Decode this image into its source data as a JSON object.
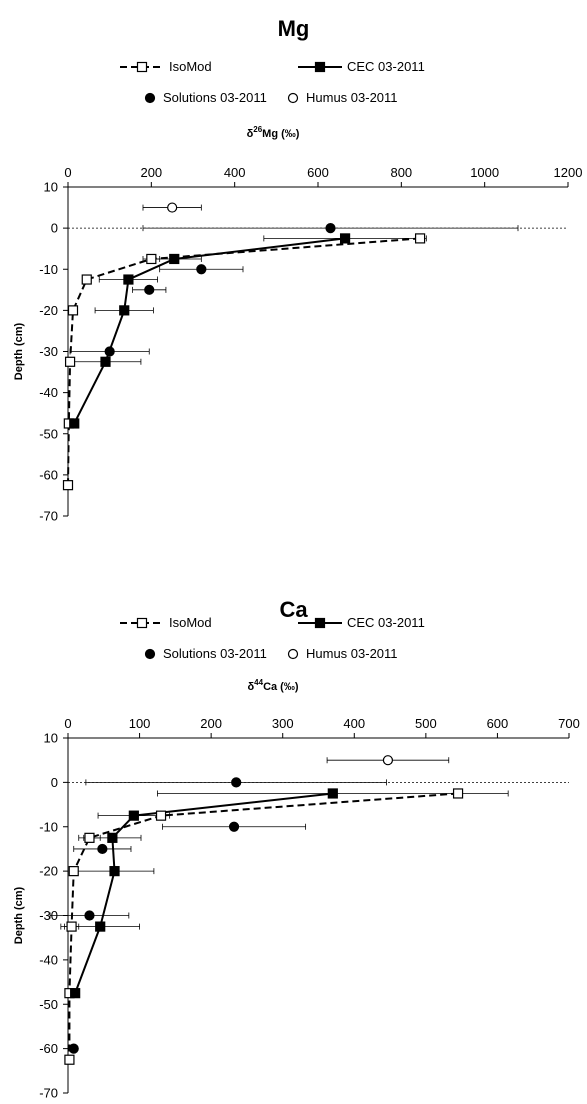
{
  "chart_data": [
    {
      "type": "line",
      "title": "Mg",
      "xlabel_prefix": "δ",
      "xlabel_sup": "26",
      "xlabel_suffix": "Mg (‰)",
      "ylabel": "Depth (cm)",
      "xlim": [
        0,
        1200
      ],
      "ylim": [
        -70,
        10
      ],
      "xticks": [
        0,
        200,
        400,
        600,
        800,
        1000,
        1200
      ],
      "yticks": [
        10,
        0,
        -10,
        -20,
        -30,
        -40,
        -50,
        -60,
        -70
      ],
      "grid": false,
      "legend_position": "top",
      "series": [
        {
          "name": "IsoMod",
          "style": "dashed-open-square",
          "points": [
            {
              "x": 845,
              "y": -2.5
            },
            {
              "x": 200,
              "y": -7.5
            },
            {
              "x": 45,
              "y": -12.5
            },
            {
              "x": 12,
              "y": -20
            },
            {
              "x": 5,
              "y": -32.5
            },
            {
              "x": 2,
              "y": -47.5
            },
            {
              "x": 0,
              "y": -62.5
            }
          ]
        },
        {
          "name": "CEC 03-2011",
          "style": "solid-filled-square",
          "points": [
            {
              "x": 665,
              "y": -2.5
            },
            {
              "x": 255,
              "y": -7.5
            },
            {
              "x": 145,
              "y": -12.5
            },
            {
              "x": 135,
              "y": -20
            },
            {
              "x": 90,
              "y": -32.5
            },
            {
              "x": 15,
              "y": -47.5
            }
          ]
        },
        {
          "name": "Solutions 03-2011",
          "style": "filled-circle",
          "points": [
            {
              "x": 630,
              "y": 0,
              "xerr": 450
            },
            {
              "x": 320,
              "y": -10,
              "xerr": 100
            },
            {
              "x": 195,
              "y": -15,
              "xerr": 40
            },
            {
              "x": 100,
              "y": -30,
              "xerr": 95
            }
          ]
        },
        {
          "name": "Humus 03-2011",
          "style": "open-circle",
          "points": [
            {
              "x": 250,
              "y": 5,
              "xerr": 70
            }
          ]
        }
      ],
      "error_bars": {
        "IsoMod": [
          {
            "x": 845,
            "y": -2.5,
            "err": 0
          },
          {
            "x": 200,
            "y": -7.5,
            "err": 20
          },
          {
            "x": 45,
            "y": -12.5,
            "err": 0
          },
          {
            "x": 12,
            "y": -20,
            "err": 0
          },
          {
            "x": 5,
            "y": -32.5,
            "err": 0
          },
          {
            "x": 2,
            "y": -47.5,
            "err": 0
          },
          {
            "x": 0,
            "y": -62.5,
            "err": 0
          }
        ],
        "CEC 03-2011": [
          {
            "x": 665,
            "y": -2.5,
            "err": 195
          },
          {
            "x": 255,
            "y": -7.5,
            "err": 65
          },
          {
            "x": 145,
            "y": -12.5,
            "err": 70
          },
          {
            "x": 135,
            "y": -20,
            "err": 70
          },
          {
            "x": 90,
            "y": -32.5,
            "err": 85
          },
          {
            "x": 15,
            "y": -47.5,
            "err": 0
          }
        ]
      }
    },
    {
      "type": "line",
      "title": "Ca",
      "xlabel_prefix": "δ",
      "xlabel_sup": "44",
      "xlabel_suffix": "Ca (‰)",
      "ylabel": "Depth (cm)",
      "xlim": [
        0,
        700
      ],
      "ylim": [
        -70,
        10
      ],
      "xticks": [
        0,
        100,
        200,
        300,
        400,
        500,
        600,
        700
      ],
      "yticks": [
        10,
        0,
        -10,
        -20,
        -30,
        -40,
        -50,
        -60,
        -70
      ],
      "grid": false,
      "legend_position": "top",
      "series": [
        {
          "name": "IsoMod",
          "style": "dashed-open-square",
          "points": [
            {
              "x": 545,
              "y": -2.5
            },
            {
              "x": 130,
              "y": -7.5
            },
            {
              "x": 30,
              "y": -12.5
            },
            {
              "x": 8,
              "y": -20
            },
            {
              "x": 5,
              "y": -32.5
            },
            {
              "x": 2,
              "y": -47.5
            },
            {
              "x": 2,
              "y": -62.5
            }
          ]
        },
        {
          "name": "CEC 03-2011",
          "style": "solid-filled-square",
          "points": [
            {
              "x": 370,
              "y": -2.5
            },
            {
              "x": 92,
              "y": -7.5
            },
            {
              "x": 62,
              "y": -12.5
            },
            {
              "x": 65,
              "y": -20
            },
            {
              "x": 45,
              "y": -32.5
            },
            {
              "x": 10,
              "y": -47.5
            }
          ]
        },
        {
          "name": "Solutions 03-2011",
          "style": "filled-circle",
          "points": [
            {
              "x": 235,
              "y": 0,
              "xerr": 210
            },
            {
              "x": 232,
              "y": -10,
              "xerr": 100
            },
            {
              "x": 48,
              "y": -15,
              "xerr": 40
            },
            {
              "x": 30,
              "y": -30,
              "xerr": 55
            },
            {
              "x": 8,
              "y": -60,
              "xerr": 0
            }
          ]
        },
        {
          "name": "Humus 03-2011",
          "style": "open-circle",
          "points": [
            {
              "x": 447,
              "y": 5,
              "xerr": 85
            }
          ]
        }
      ],
      "error_bars": {
        "IsoMod": [
          {
            "x": 545,
            "y": -2.5,
            "err": 0
          },
          {
            "x": 130,
            "y": -7.5,
            "err": 0
          },
          {
            "x": 30,
            "y": -12.5,
            "err": 15
          },
          {
            "x": 8,
            "y": -20,
            "err": 0
          },
          {
            "x": 5,
            "y": -32.5,
            "err": 10
          },
          {
            "x": 2,
            "y": -47.5,
            "err": 0
          },
          {
            "x": 2,
            "y": -62.5,
            "err": 0
          }
        ],
        "CEC 03-2011": [
          {
            "x": 370,
            "y": -2.5,
            "err": 245
          },
          {
            "x": 92,
            "y": -7.5,
            "err": 50
          },
          {
            "x": 62,
            "y": -12.5,
            "err": 40
          },
          {
            "x": 65,
            "y": -20,
            "err": 55
          },
          {
            "x": 45,
            "y": -32.5,
            "err": 55
          },
          {
            "x": 10,
            "y": -47.5,
            "err": 0
          }
        ]
      }
    }
  ]
}
